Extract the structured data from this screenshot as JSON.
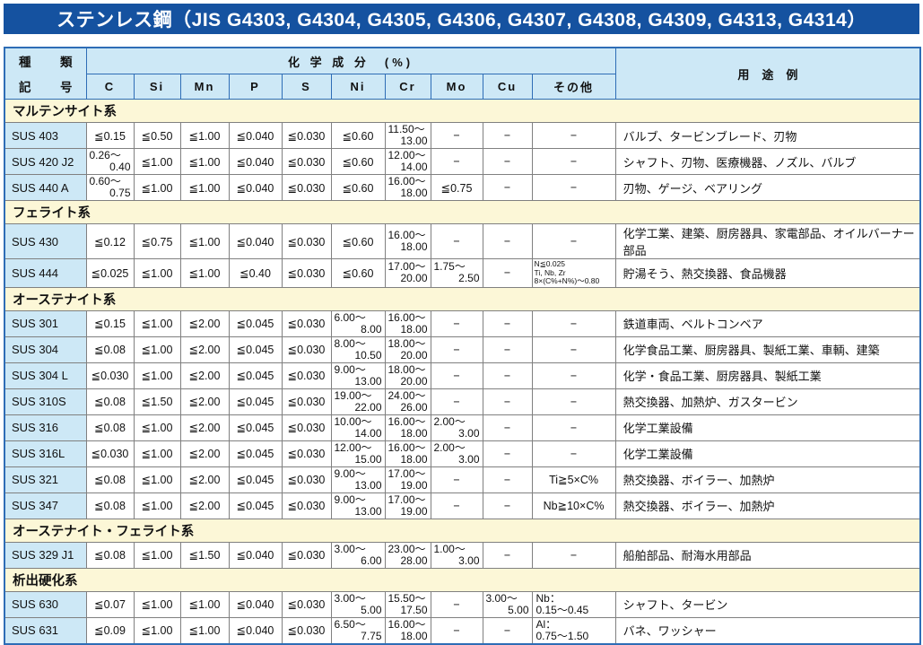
{
  "title": "ステンレス鋼（JIS G4303, G4304, G4305, G4306, G4307, G4308, G4309, G4313, G4314）",
  "colors": {
    "title_bg": "#1552A0",
    "title_text": "#FFFFFF",
    "header_bg": "#CDE8F6",
    "code_cell_bg": "#CDE8F6",
    "section_bg": "#FCF7D7",
    "outer_border": "#2E6DB6",
    "grid_border": "#808080"
  },
  "header": {
    "type_top_left": "種",
    "type_top_right": "類",
    "type_bottom_left": "記",
    "type_bottom_right": "号",
    "chem_label": "化 学 成 分　(%)",
    "usage_label": "用途例",
    "chem_columns": [
      "C",
      "Si",
      "Mn",
      "P",
      "S",
      "Ni",
      "Cr",
      "Mo",
      "Cu",
      "その他"
    ]
  },
  "sections": [
    {
      "name": "マルテンサイト系",
      "rows": [
        {
          "code": "SUS 403",
          "c": "≦0.15",
          "si": "≦0.50",
          "mn": "≦1.00",
          "p": "≦0.040",
          "s": "≦0.030",
          "ni": "≦0.60",
          "cr": [
            "11.50～",
            "13.00"
          ],
          "mo": "−",
          "cu": "−",
          "other": "−",
          "usage": "バルブ、タービンブレード、刃物"
        },
        {
          "code": "SUS 420 J2",
          "c": [
            "0.26～",
            "0.40"
          ],
          "si": "≦1.00",
          "mn": "≦1.00",
          "p": "≦0.040",
          "s": "≦0.030",
          "ni": "≦0.60",
          "cr": [
            "12.00～",
            "14.00"
          ],
          "mo": "−",
          "cu": "−",
          "other": "−",
          "usage": "シャフト、刃物、医療機器、ノズル、バルブ"
        },
        {
          "code": "SUS 440 A",
          "c": [
            "0.60～",
            "0.75"
          ],
          "si": "≦1.00",
          "mn": "≦1.00",
          "p": "≦0.040",
          "s": "≦0.030",
          "ni": "≦0.60",
          "cr": [
            "16.00～",
            "18.00"
          ],
          "mo": "≦0.75",
          "cu": "−",
          "other": "−",
          "usage": "刃物、ゲージ、ベアリング"
        }
      ]
    },
    {
      "name": "フェライト系",
      "rows": [
        {
          "code": "SUS 430",
          "c": "≦0.12",
          "si": "≦0.75",
          "mn": "≦1.00",
          "p": "≦0.040",
          "s": "≦0.030",
          "ni": "≦0.60",
          "cr": [
            "16.00～",
            "18.00"
          ],
          "mo": "−",
          "cu": "−",
          "other": "−",
          "usage": "化学工業、建築、厨房器具、家電部品、オイルバーナー部品"
        },
        {
          "code": "SUS 444",
          "c": "≦0.025",
          "si": "≦1.00",
          "mn": "≦1.00",
          "p": "≦0.40",
          "s": "≦0.030",
          "ni": "≦0.60",
          "cr": [
            "17.00～",
            "20.00"
          ],
          "mo": [
            "1.75～",
            "2.50"
          ],
          "cu": "−",
          "other": {
            "small": [
              "N≦0.025",
              "Ti, Nb, Zr",
              "8×(C%+N%)～0.80"
            ]
          },
          "usage": "貯湯そう、熱交換器、食品機器"
        }
      ]
    },
    {
      "name": "オーステナイト系",
      "rows": [
        {
          "code": "SUS 301",
          "c": "≦0.15",
          "si": "≦1.00",
          "mn": "≦2.00",
          "p": "≦0.045",
          "s": "≦0.030",
          "ni": [
            "6.00～",
            "8.00"
          ],
          "cr": [
            "16.00～",
            "18.00"
          ],
          "mo": "−",
          "cu": "−",
          "other": "−",
          "usage": "鉄道車両、ベルトコンベア"
        },
        {
          "code": "SUS 304",
          "c": "≦0.08",
          "si": "≦1.00",
          "mn": "≦2.00",
          "p": "≦0.045",
          "s": "≦0.030",
          "ni": [
            "8.00～",
            "10.50"
          ],
          "cr": [
            "18.00～",
            "20.00"
          ],
          "mo": "−",
          "cu": "−",
          "other": "−",
          "usage": "化学食品工業、厨房器具、製紙工業、車輌、建築"
        },
        {
          "code": "SUS 304 L",
          "c": "≦0.030",
          "si": "≦1.00",
          "mn": "≦2.00",
          "p": "≦0.045",
          "s": "≦0.030",
          "ni": [
            "9.00～",
            "13.00"
          ],
          "cr": [
            "18.00～",
            "20.00"
          ],
          "mo": "−",
          "cu": "−",
          "other": "−",
          "usage": "化学・食品工業、厨房器具、製紙工業"
        },
        {
          "code": "SUS 310S",
          "c": "≦0.08",
          "si": "≦1.50",
          "mn": "≦2.00",
          "p": "≦0.045",
          "s": "≦0.030",
          "ni": [
            "19.00～",
            "22.00"
          ],
          "cr": [
            "24.00～",
            "26.00"
          ],
          "mo": "−",
          "cu": "−",
          "other": "−",
          "usage": "熱交換器、加熱炉、ガスタービン"
        },
        {
          "code": "SUS 316",
          "c": "≦0.08",
          "si": "≦1.00",
          "mn": "≦2.00",
          "p": "≦0.045",
          "s": "≦0.030",
          "ni": [
            "10.00～",
            "14.00"
          ],
          "cr": [
            "16.00～",
            "18.00"
          ],
          "mo": [
            "2.00～",
            "3.00"
          ],
          "cu": "−",
          "other": "−",
          "usage": "化学工業設備"
        },
        {
          "code": "SUS 316L",
          "c": "≦0.030",
          "si": "≦1.00",
          "mn": "≦2.00",
          "p": "≦0.045",
          "s": "≦0.030",
          "ni": [
            "12.00～",
            "15.00"
          ],
          "cr": [
            "16.00～",
            "18.00"
          ],
          "mo": [
            "2.00～",
            "3.00"
          ],
          "cu": "−",
          "other": "−",
          "usage": "化学工業設備"
        },
        {
          "code": "SUS 321",
          "c": "≦0.08",
          "si": "≦1.00",
          "mn": "≦2.00",
          "p": "≦0.045",
          "s": "≦0.030",
          "ni": [
            "9.00～",
            "13.00"
          ],
          "cr": [
            "17.00～",
            "19.00"
          ],
          "mo": "−",
          "cu": "−",
          "other": "Ti≧5×C%",
          "usage": "熱交換器、ボイラー、加熱炉"
        },
        {
          "code": "SUS 347",
          "c": "≦0.08",
          "si": "≦1.00",
          "mn": "≦2.00",
          "p": "≦0.045",
          "s": "≦0.030",
          "ni": [
            "9.00～",
            "13.00"
          ],
          "cr": [
            "17.00～",
            "19.00"
          ],
          "mo": "−",
          "cu": "−",
          "other": "Nb≧10×C%",
          "usage": "熱交換器、ボイラー、加熱炉"
        }
      ]
    },
    {
      "name": "オーステナイト・フェライト系",
      "rows": [
        {
          "code": "SUS 329 J1",
          "c": "≦0.08",
          "si": "≦1.00",
          "mn": "≦1.50",
          "p": "≦0.040",
          "s": "≦0.030",
          "ni": [
            "3.00～",
            "6.00"
          ],
          "cr": [
            "23.00～",
            "28.00"
          ],
          "mo": [
            "1.00～",
            "3.00"
          ],
          "cu": "−",
          "other": "−",
          "usage": "船舶部品、耐海水用部品"
        }
      ]
    },
    {
      "name": "析出硬化系",
      "rows": [
        {
          "code": "SUS 630",
          "c": "≦0.07",
          "si": "≦1.00",
          "mn": "≦1.00",
          "p": "≦0.040",
          "s": "≦0.030",
          "ni": [
            "3.00～",
            "5.00"
          ],
          "cr": [
            "15.50～",
            "17.50"
          ],
          "mo": "−",
          "cu": [
            "3.00～",
            "5.00"
          ],
          "other": {
            "left": [
              "Nb：",
              "0.15～0.45"
            ]
          },
          "usage": "シャフト、タービン"
        },
        {
          "code": "SUS 631",
          "c": "≦0.09",
          "si": "≦1.00",
          "mn": "≦1.00",
          "p": "≦0.040",
          "s": "≦0.030",
          "ni": [
            "6.50～",
            "7.75"
          ],
          "cr": [
            "16.00～",
            "18.00"
          ],
          "mo": "−",
          "cu": "−",
          "other": {
            "left": [
              "Al：",
              "0.75～1.50"
            ]
          },
          "usage": "バネ、ワッシャー"
        }
      ]
    }
  ]
}
